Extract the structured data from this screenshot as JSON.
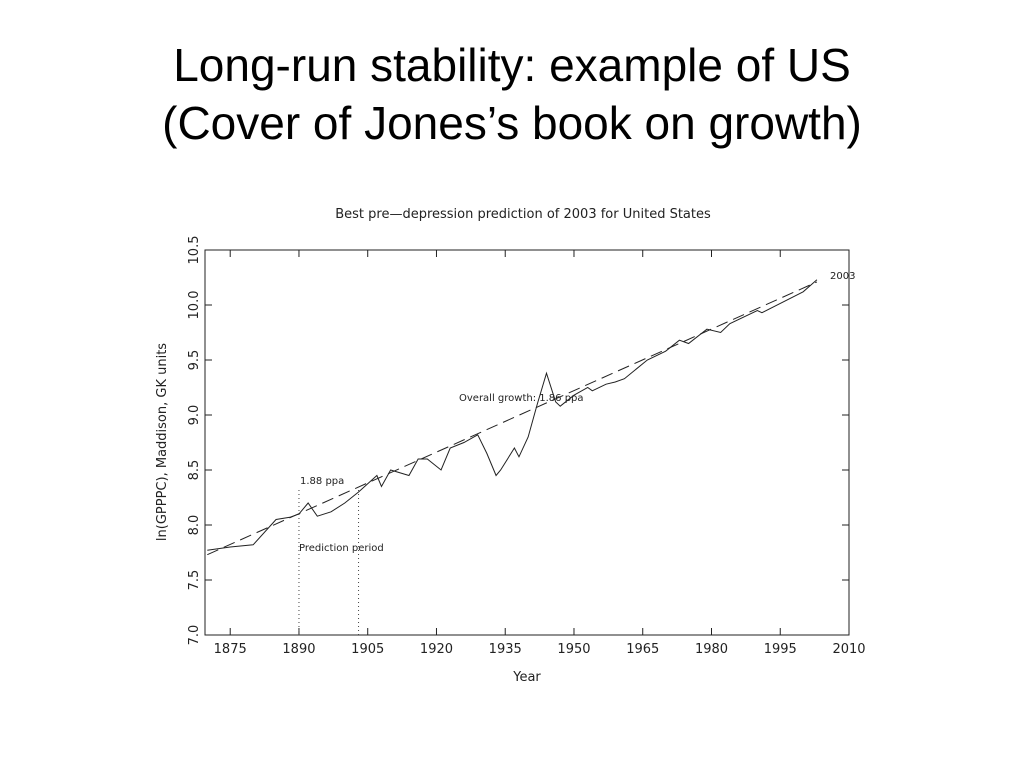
{
  "slide_title": [
    "Long-run stability: example of US",
    "(Cover of Jones’s book on growth)"
  ],
  "chart_data": {
    "type": "line",
    "title": "Best pre—depression prediction of 2003 for United States",
    "x_label": "Year",
    "y_label": "ln(GPPPC), Maddison, GK units",
    "xlim": [
      1869.5,
      2010
    ],
    "xticks": [
      1875,
      1890,
      1905,
      1920,
      1935,
      1950,
      1965,
      1980,
      1995,
      2010
    ],
    "ylim": [
      7.0,
      10.5
    ],
    "yticks": [
      {
        "value": 7.0,
        "label": "7.0"
      },
      {
        "value": 7.5,
        "label": "7.5"
      },
      {
        "value": 8.0,
        "label": "8.0"
      },
      {
        "value": 8.5,
        "label": "8.5"
      },
      {
        "value": 9.0,
        "label": "9.0"
      },
      {
        "value": 9.5,
        "label": "9.5"
      },
      {
        "value": 10.0,
        "label": "10.0"
      },
      {
        "value": 10.5,
        "label": "10.5"
      }
    ],
    "series": [
      {
        "color": "#222",
        "dash": false,
        "x": [
          1870,
          1875,
          1880,
          1885,
          1888,
          1890,
          1892,
          1894,
          1897,
          1900,
          1903,
          1907,
          1908,
          1910,
          1914,
          1916,
          1918,
          1921,
          1923,
          1926,
          1929,
          1931,
          1933,
          1934,
          1937,
          1938,
          1940,
          1942,
          1944,
          1946,
          1947,
          1950,
          1953,
          1954,
          1957,
          1959,
          1961,
          1966,
          1970,
          1973,
          1975,
          1979,
          1982,
          1984,
          1990,
          1991,
          2000,
          2003
        ],
        "values": [
          7.77,
          7.8,
          7.82,
          8.05,
          8.07,
          8.1,
          8.2,
          8.08,
          8.12,
          8.2,
          8.3,
          8.45,
          8.35,
          8.5,
          8.45,
          8.6,
          8.6,
          8.5,
          8.7,
          8.75,
          8.82,
          8.65,
          8.45,
          8.5,
          8.7,
          8.62,
          8.8,
          9.1,
          9.38,
          9.12,
          9.08,
          9.18,
          9.25,
          9.22,
          9.28,
          9.3,
          9.33,
          9.5,
          9.58,
          9.68,
          9.65,
          9.78,
          9.75,
          9.83,
          9.95,
          9.93,
          10.12,
          10.23
        ]
      },
      {
        "color": "#222",
        "dash": true,
        "x": [
          1870,
          2003
        ],
        "values": [
          7.73,
          10.21
        ]
      }
    ],
    "prediction_period": [
      1890,
      1903
    ],
    "annotations": [
      "Overall growth: 1.86 ppa",
      "1.88 ppa",
      "Prediction period",
      "2003"
    ]
  }
}
